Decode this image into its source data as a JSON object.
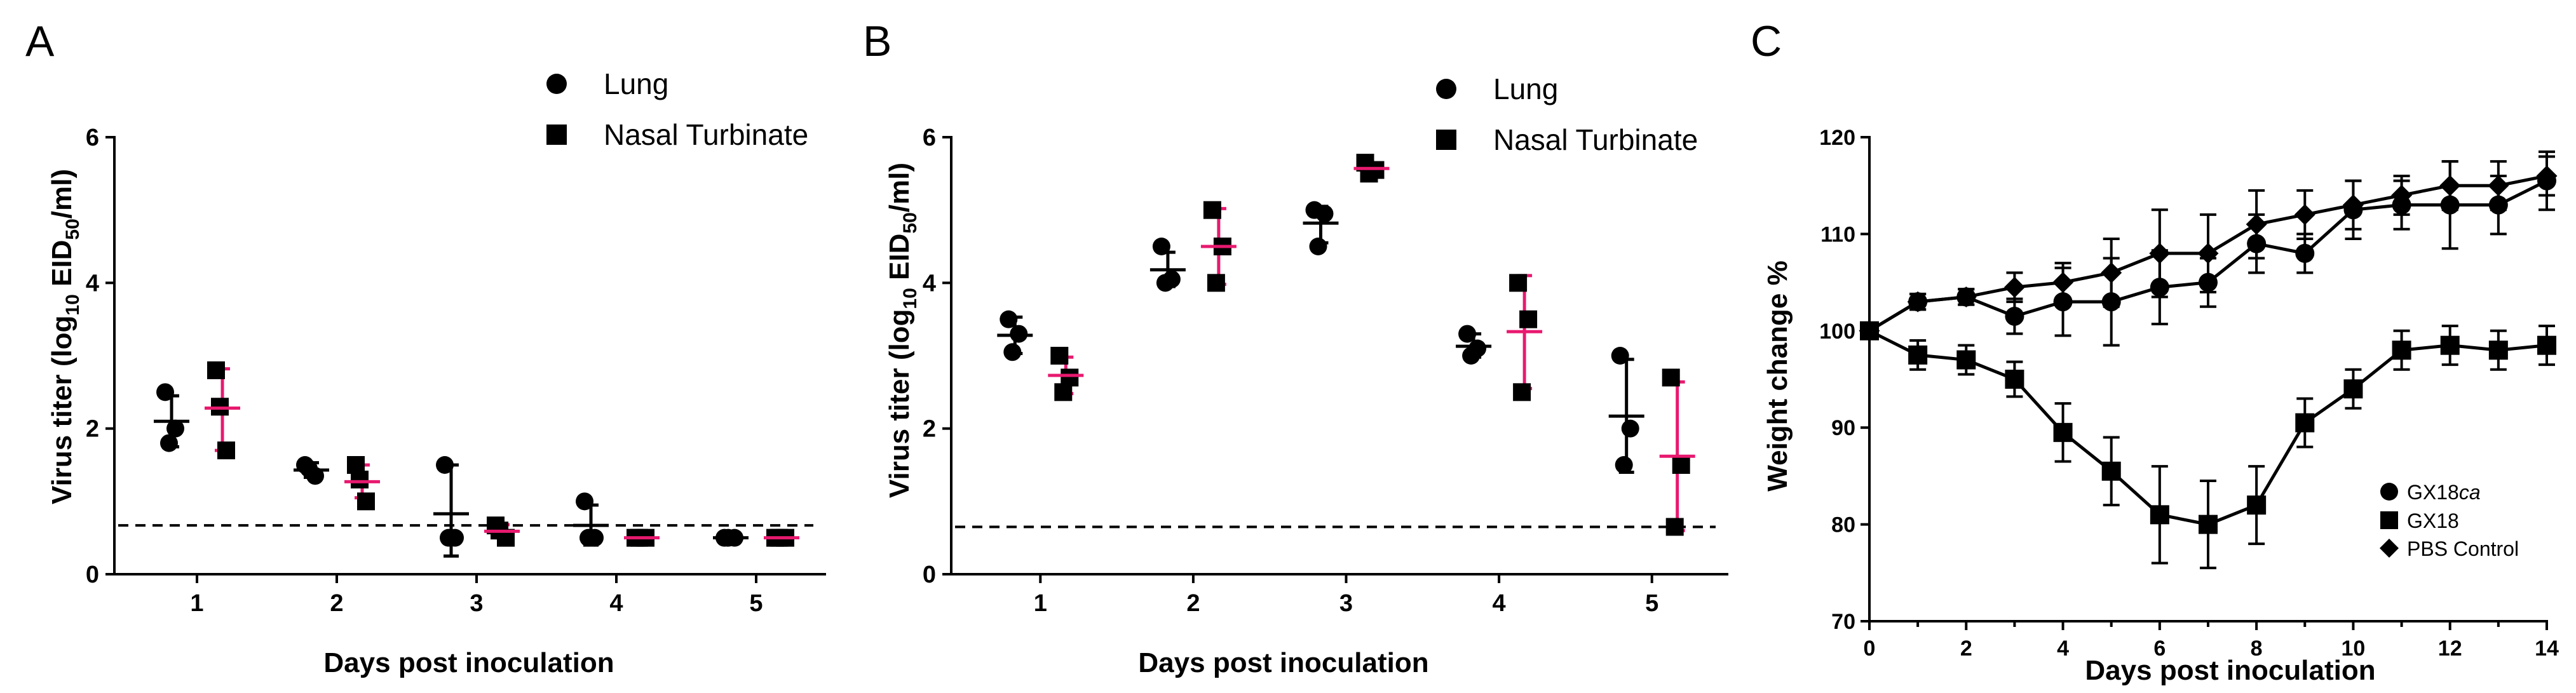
{
  "colors": {
    "lung": "#000000",
    "nasal": "#e8196f",
    "axis": "#000000"
  },
  "chart_data": [
    {
      "panel": "A",
      "type": "scatter",
      "title": "",
      "xlabel": "Days post inoculation",
      "ylabel_main": "Virus titer (log",
      "ylabel_sub1": "10",
      "ylabel_mid": " EID",
      "ylabel_sub2": "50",
      "ylabel_end": "/ml)",
      "ylim": [
        0,
        6
      ],
      "yticks": [
        "0",
        "2",
        "4",
        "6"
      ],
      "categories": [
        "1",
        "2",
        "3",
        "4",
        "5"
      ],
      "detection_limit": 0.67,
      "legend": {
        "lung": "Lung",
        "nasal": "Nasal Turbinate"
      },
      "series": [
        {
          "name": "Lung",
          "marker": "circle",
          "points": [
            [
              2.5,
              2.0,
              1.8
            ],
            [
              1.5,
              1.35,
              1.45
            ],
            [
              1.5,
              0.5,
              0.5
            ],
            [
              1.0,
              0.5,
              0.5
            ],
            [
              0.5,
              0.5,
              0.5
            ]
          ],
          "mean": [
            2.1,
            1.43,
            0.83,
            0.67,
            0.5
          ],
          "sd_low": [
            1.75,
            1.33,
            0.25,
            0.4,
            0.5
          ],
          "sd_high": [
            2.45,
            1.53,
            1.5,
            0.95,
            0.5
          ]
        },
        {
          "name": "Nasal Turbinate",
          "marker": "square",
          "points": [
            [
              2.8,
              1.7,
              2.3
            ],
            [
              1.5,
              1.0,
              1.3
            ],
            [
              0.67,
              0.5,
              0.6
            ],
            [
              0.5,
              0.5,
              0.5
            ],
            [
              0.5,
              0.5,
              0.5
            ]
          ],
          "mean": [
            2.28,
            1.27,
            0.59,
            0.5,
            0.5
          ],
          "sd_low": [
            1.7,
            1.05,
            0.5,
            0.5,
            0.5
          ],
          "sd_high": [
            2.82,
            1.5,
            0.68,
            0.5,
            0.5
          ]
        }
      ]
    },
    {
      "panel": "B",
      "type": "scatter",
      "title": "",
      "xlabel": "Days post inoculation",
      "ylabel_main": "Virus titer (log",
      "ylabel_sub1": "10",
      "ylabel_mid": " EID",
      "ylabel_sub2": "50",
      "ylabel_end": "/ml)",
      "ylim": [
        0,
        6
      ],
      "yticks": [
        "0",
        "2",
        "4",
        "6"
      ],
      "categories": [
        "1",
        "2",
        "3",
        "4",
        "5"
      ],
      "detection_limit": 0.65,
      "legend": {
        "lung": "Lung",
        "nasal": "Nasal Turbinate"
      },
      "series": [
        {
          "name": "Lung",
          "marker": "circle",
          "points": [
            [
              3.5,
              3.3,
              3.05
            ],
            [
              4.5,
              4.05,
              4.0
            ],
            [
              5.0,
              4.95,
              4.5
            ],
            [
              3.3,
              3.1,
              3.0
            ],
            [
              3.0,
              2.0,
              1.5
            ]
          ],
          "mean": [
            3.28,
            4.18,
            4.82,
            3.13,
            2.17
          ],
          "sd_low": [
            3.03,
            3.95,
            4.55,
            2.98,
            1.4
          ],
          "sd_high": [
            3.53,
            4.42,
            5.05,
            3.3,
            2.95
          ]
        },
        {
          "name": "Nasal Turbinate",
          "marker": "square",
          "points": [
            [
              3.0,
              2.7,
              2.5
            ],
            [
              5.0,
              4.5,
              4.0
            ],
            [
              5.65,
              5.55,
              5.5
            ],
            [
              4.0,
              3.5,
              2.5
            ],
            [
              2.7,
              1.5,
              0.65
            ]
          ],
          "mean": [
            2.73,
            4.5,
            5.57,
            3.33,
            1.62
          ],
          "sd_low": [
            2.48,
            3.98,
            5.5,
            2.55,
            0.6
          ],
          "sd_high": [
            2.98,
            5.02,
            5.64,
            4.1,
            2.64
          ]
        }
      ]
    },
    {
      "panel": "C",
      "type": "line",
      "title": "",
      "xlabel": "Days post inoculation",
      "ylabel": "Weight change %",
      "xlim": [
        0,
        14
      ],
      "ylim": [
        70,
        120
      ],
      "xticks": [
        "0",
        "2",
        "4",
        "6",
        "8",
        "10",
        "12",
        "14"
      ],
      "yticks": [
        "70",
        "80",
        "90",
        "100",
        "110",
        "120"
      ],
      "x": [
        0,
        1,
        2,
        3,
        4,
        5,
        6,
        7,
        8,
        9,
        10,
        11,
        12,
        13,
        14
      ],
      "series": [
        {
          "name_main": "GX18",
          "name_italic": "ca",
          "marker": "circle",
          "values": [
            100,
            103,
            103.5,
            101.5,
            103,
            103,
            104.5,
            105,
            109,
            108,
            112.5,
            113,
            113,
            113,
            115.5
          ],
          "err": [
            0,
            0.8,
            0.8,
            1.8,
            3.5,
            4.5,
            3.8,
            2.5,
            3,
            2,
            3,
            2.5,
            4.5,
            3,
            3
          ]
        },
        {
          "name_main": "GX18",
          "name_italic": "",
          "marker": "square",
          "values": [
            100,
            97.5,
            97,
            95,
            89.5,
            85.5,
            81,
            80,
            82,
            90.5,
            94,
            98,
            98.5,
            98,
            98.5
          ],
          "err": [
            0,
            1.5,
            1.5,
            1.8,
            3,
            3.5,
            5,
            4.5,
            4,
            2.5,
            2,
            2,
            2,
            2,
            2
          ]
        },
        {
          "name_main": "PBS Control",
          "name_italic": "",
          "marker": "diamond",
          "values": [
            100,
            103,
            103.5,
            104.5,
            105,
            106,
            108,
            108,
            111,
            112,
            113,
            114,
            115,
            115,
            116
          ],
          "err": [
            0,
            0.8,
            0.8,
            1.5,
            2,
            3.5,
            4.5,
            4,
            3.5,
            2.5,
            2.5,
            2,
            2.5,
            2.5,
            2
          ]
        }
      ]
    }
  ]
}
